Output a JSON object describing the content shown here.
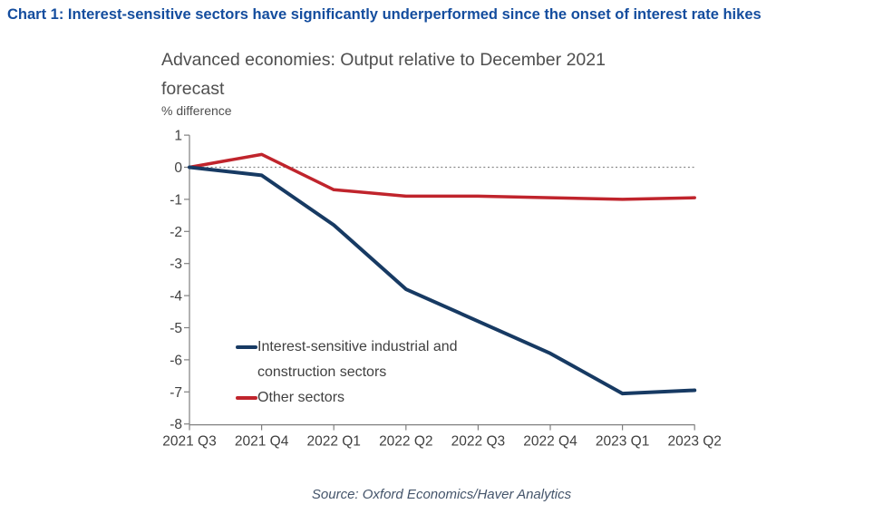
{
  "page": {
    "header": "Chart 1: Interest-sensitive sectors have significantly underperformed since the onset of interest rate hikes",
    "source": "Source: Oxford Economics/Haver Analytics"
  },
  "colors": {
    "header_blue": "#144d9e",
    "axis_grey": "#808080",
    "text_grey": "#404040",
    "zero_line_grey": "#8a8a8a",
    "series_blue": "#173a63",
    "series_red": "#c0242c"
  },
  "chart_data": {
    "type": "line",
    "title": "Advanced economies: Output relative to December 2021 forecast",
    "title_lines": [
      "Advanced economies: Output relative to December 2021",
      "forecast"
    ],
    "ylabel": "% difference",
    "xlabel": "",
    "categories": [
      "2021 Q3",
      "2021 Q4",
      "2022 Q1",
      "2022 Q2",
      "2022 Q3",
      "2022 Q4",
      "2023 Q1",
      "2023 Q2"
    ],
    "series": [
      {
        "name": "Interest-sensitive industrial and construction sectors",
        "color": "#173a63",
        "values": [
          0,
          -0.25,
          -1.8,
          -3.8,
          -4.8,
          -5.8,
          -7.05,
          -6.95
        ]
      },
      {
        "name": "Other sectors",
        "color": "#c0242c",
        "values": [
          0,
          0.4,
          -0.7,
          -0.9,
          -0.9,
          -0.95,
          -1.0,
          -0.95
        ]
      }
    ],
    "legend": [
      {
        "lines": [
          "Interest-sensitive industrial and",
          "construction sectors"
        ]
      },
      {
        "lines": [
          "Other sectors"
        ]
      }
    ],
    "ylim": [
      -8,
      1
    ],
    "yticks": [
      1,
      0,
      -1,
      -2,
      -3,
      -4,
      -5,
      -6,
      -7,
      -8
    ],
    "zero_line": "dotted",
    "grid": false,
    "legend_position": "inside-bottom-left"
  }
}
